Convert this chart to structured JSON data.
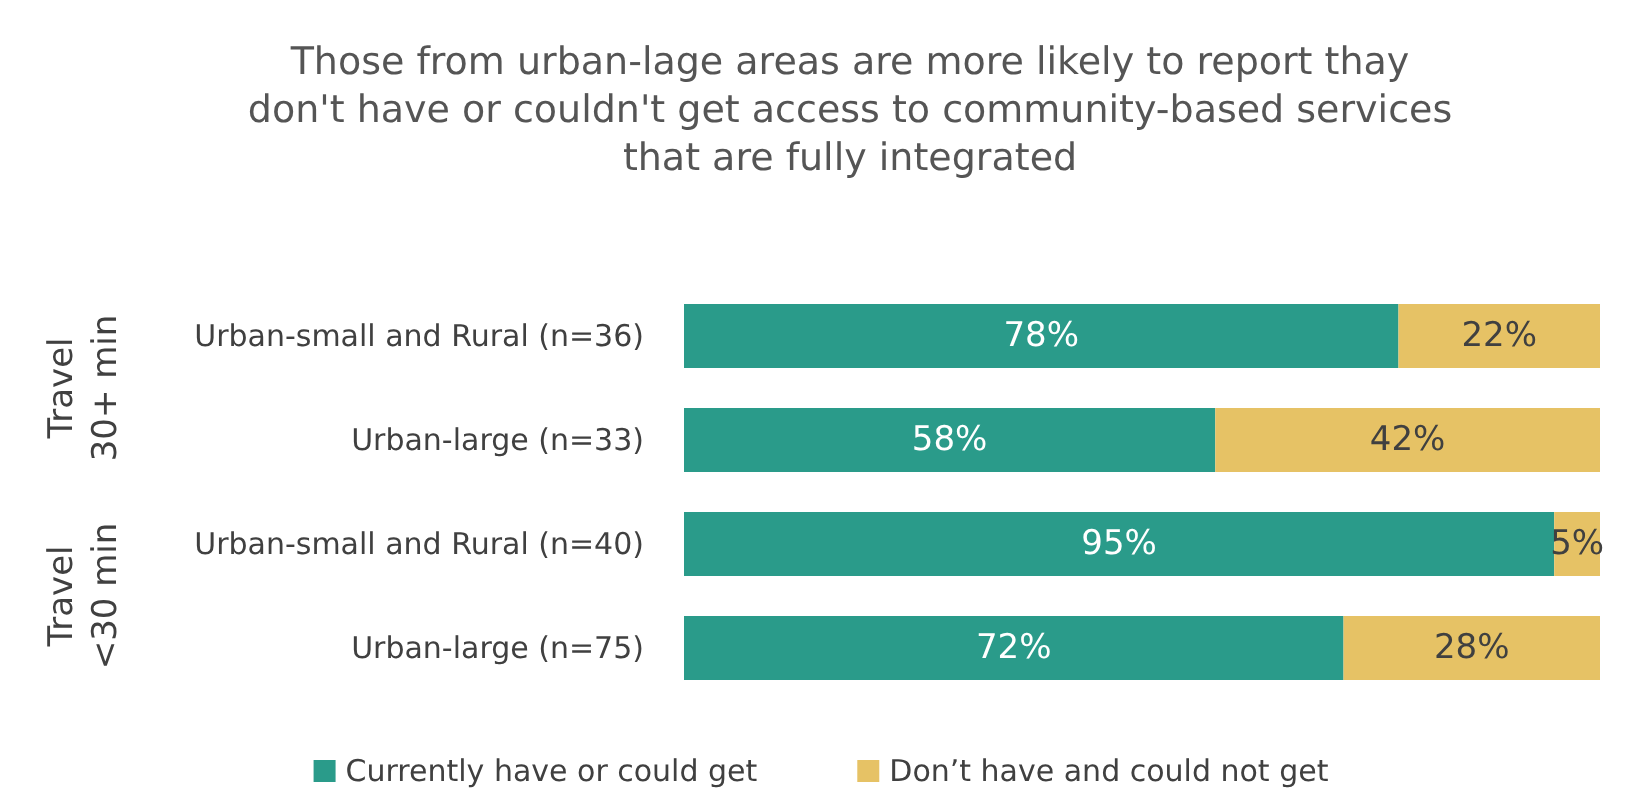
{
  "chart_data": {
    "type": "bar",
    "orientation": "horizontal",
    "stacked": true,
    "title": "Those from urban-lage areas are more likely to report thay\ndon't have or couldn't get access to community-based services\nthat are fully integrated",
    "categories": [
      "Urban-small and Rural (n=36)",
      "Urban-large (n=33)",
      "Urban-small and Rural (n=40)",
      "Urban-large (n=75)"
    ],
    "series": [
      {
        "name": "Currently have or could get",
        "color": "#2a9b8a",
        "values": [
          78,
          58,
          95,
          72
        ],
        "value_labels": [
          "78%",
          "58%",
          "95%",
          "72%"
        ]
      },
      {
        "name": "Don’t have and could not get",
        "color": "#e6c265",
        "values": [
          22,
          42,
          5,
          28
        ],
        "value_labels": [
          "22%",
          "42%",
          "5%",
          "28%"
        ]
      }
    ],
    "annotations": [
      "Travel\n30+ min",
      "Travel\n<30 min"
    ],
    "tick_labels": "y",
    "legend": "bottom"
  }
}
